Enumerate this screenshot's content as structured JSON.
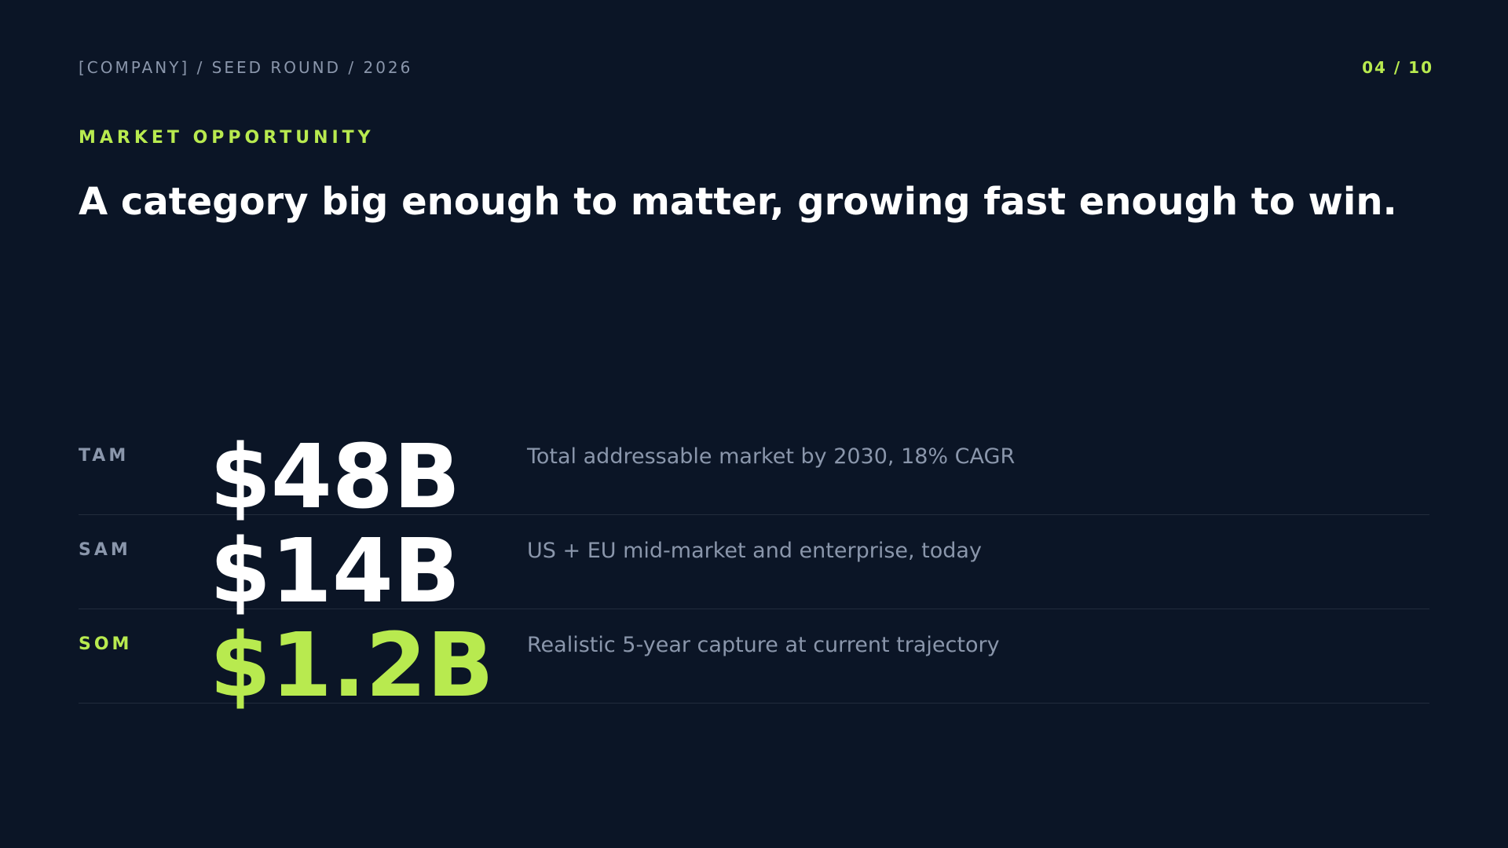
{
  "header": {
    "left": "[COMPANY] / SEED ROUND / 2026",
    "page": "04 / 10"
  },
  "section_label": "MARKET OPPORTUNITY",
  "headline": "A category big enough to matter, growing fast enough to win.",
  "rows": [
    {
      "label": "TAM",
      "value": "$48B",
      "description": "Total addressable market by 2030, 18% CAGR"
    },
    {
      "label": "SAM",
      "value": "$14B",
      "description": "US + EU mid-market and enterprise, today"
    },
    {
      "label": "SOM",
      "value": "$1.2B",
      "description": "Realistic 5-year capture at current trajectory"
    }
  ]
}
